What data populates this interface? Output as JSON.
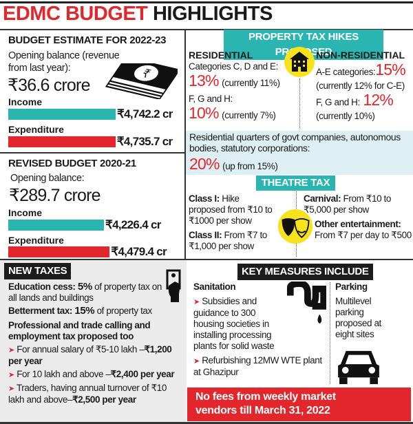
{
  "title": {
    "part1": "EDMC BUDGET",
    "part2": "HIGHLIGHTS"
  },
  "colors": {
    "teal": "#2bb5b0",
    "red": "#e3262b",
    "yellow": "#f7e21b"
  },
  "budget_estimate": {
    "heading": "BUDGET ESTIMATE FOR 2022-23",
    "opening_label": "Opening balance (revenue from last year):",
    "opening_value": "₹36.6 crore",
    "income_label": "Income",
    "income_value": "₹4,742.2 cr",
    "income_amount": 4742.2,
    "expenditure_label": "Expenditure",
    "expenditure_value": "₹4,735.7 cr",
    "expenditure_amount": 4735.7,
    "icon": "rupee-notes-icon"
  },
  "revised_budget": {
    "heading": "REVISED BUDGET 2020-21",
    "opening_label": "Opening balance:",
    "opening_value": "₹289.7 crore",
    "income_label": "Income",
    "income_value": "₹4,226.4 cr",
    "income_amount": 4226.4,
    "expenditure_label": "Expenditure",
    "expenditure_value": "₹4,479.4 cr",
    "expenditure_amount": 4479.4
  },
  "property_tax": {
    "heading": "PROPERTY TAX HIKES PROPOSED",
    "residential": {
      "heading": "RESIDENTIAL",
      "cat1_label": "Categories C, D and E:",
      "cat1_pct": "13%",
      "cat1_note": "(currently 11%)",
      "cat2_label": "F, G and H:",
      "cat2_pct": "10%",
      "cat2_note": "(currently 7%)"
    },
    "non_residential": {
      "heading": "NON-RESIDENTIAL",
      "cat1_label": "A-E categories:",
      "cat1_pct": "15%",
      "cat1_note": "(currently 12% for C-E)",
      "cat2_label": "F, G and H:",
      "cat2_pct": "12%",
      "cat2_note": "(currently 10%)"
    },
    "govt": {
      "text": "Residential quarters of govt companies, autonomous bodies, statutory corporations:",
      "pct": "20%",
      "note": "(up from 15%)"
    },
    "icon": "building-icon"
  },
  "theatre_tax": {
    "heading": "THEATRE TAX",
    "class1_label": "Class I:",
    "class1_text": "Hike proposed from ₹10 to ₹1000 per show",
    "class2_label": "Class II:",
    "class2_text": "From ₹7 to ₹1,000 per show",
    "carnival_label": "Carnival:",
    "carnival_text": "From ₹10 to ₹5,000 per show",
    "other_label": "Other entertainment:",
    "other_text": "From ₹7 per day to ₹500",
    "icon": "theatre-masks-icon"
  },
  "new_taxes": {
    "heading": "NEW TAXES",
    "edu_label": "Education cess:",
    "edu_pct": "5%",
    "edu_text": "of property tax on all lands and buildings",
    "bet_label": "Betterment tax:",
    "bet_pct": "15%",
    "bet_text": "of property tax",
    "prof_heading": "Professional and trade calling and employment tax proposed too",
    "items": [
      {
        "text": "For annual salary of ₹5-10 lakh –",
        "bold": "₹1,200 per year"
      },
      {
        "text": "For 10 lakh and above –",
        "bold": "₹2,400 per year"
      },
      {
        "text": "Traders, having annual turnover of ₹10 lakh and above–",
        "bold": "₹2,500 per year"
      }
    ],
    "icon": "hand-bill-icon"
  },
  "key_measures": {
    "heading": "KEY MEASURES INCLUDE",
    "sanitation_heading": "Sanitation",
    "sanitation_items": [
      "Subsidies and guidance to 300 housing societies in installing processing plants for solid waste",
      "Refurbishing 12MW WTE plant at Ghazipur"
    ],
    "parking_heading": "Parking",
    "parking_text": "Multilevel parking proposed at eight sites",
    "footer": "No fees from weekly market vendors till March 31, 2022"
  }
}
